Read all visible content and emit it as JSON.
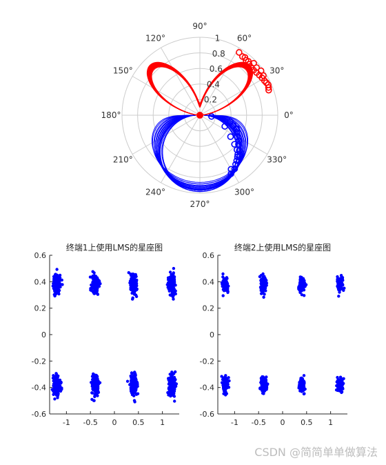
{
  "chart_data": [
    {
      "type": "polar",
      "angle_ticks_deg": [
        0,
        30,
        60,
        90,
        120,
        150,
        180,
        210,
        240,
        270,
        300,
        330
      ],
      "angle_tick_labels": [
        "0°",
        "30°",
        "60°",
        "90°",
        "120°",
        "150°",
        "180°",
        "210°",
        "240°",
        "270°",
        "300°",
        "330°"
      ],
      "r_ticks": [
        0.2,
        0.4,
        0.6,
        0.8,
        1
      ],
      "r_tick_labels": [
        "0.2",
        "0.4",
        "0.6",
        "0.8",
        "1"
      ],
      "rlim": [
        0,
        1
      ],
      "grid": true,
      "colors": {
        "upper": "#ff0000",
        "lower": "#0000ff",
        "grid": "#cccccc"
      },
      "series": [
        {
          "color": "#ff0000",
          "curves": [
            [
              0.9,
              0.8,
              0.3,
              0.1,
              0.0
            ],
            [
              0.88,
              0.82,
              0.35,
              0.2,
              0.05
            ],
            [
              0.92,
              0.78,
              0.25,
              0.0,
              0.1
            ],
            [
              0.86,
              0.84,
              0.4,
              0.3,
              0.0
            ],
            [
              0.94,
              0.76,
              0.2,
              0.05,
              0.08
            ],
            [
              0.84,
              0.86,
              0.45,
              0.35,
              0.02
            ],
            [
              0.96,
              0.74,
              0.15,
              0.15,
              0.12
            ],
            [
              0.82,
              0.88,
              0.5,
              0.4,
              0.04
            ],
            [
              0.98,
              0.72,
              0.1,
              0.25,
              0.06
            ],
            [
              0.8,
              0.9,
              0.55,
              0.45,
              0.0
            ],
            [
              0.91,
              0.81,
              0.28,
              0.12,
              0.09
            ],
            [
              0.87,
              0.83,
              0.38,
              0.22,
              0.03
            ],
            [
              0.93,
              0.79,
              0.22,
              0.08,
              0.11
            ],
            [
              0.85,
              0.85,
              0.42,
              0.28,
              0.01
            ],
            [
              0.95,
              0.77,
              0.18,
              0.18,
              0.07
            ],
            [
              0.83,
              0.87,
              0.48,
              0.38,
              0.05
            ],
            [
              0.97,
              0.75,
              0.12,
              0.02,
              0.1
            ],
            [
              0.81,
              0.89,
              0.52,
              0.42,
              0.02
            ],
            [
              0.89,
              0.8,
              0.32,
              0.15,
              0.06
            ],
            [
              0.9,
              0.82,
              0.3,
              0.25,
              0.04
            ]
          ],
          "marker_points": [
            [
              0.95,
              58
            ],
            [
              0.93,
              54
            ],
            [
              0.92,
              50
            ],
            [
              0.91,
              46
            ],
            [
              0.9,
              43
            ],
            [
              0.9,
              40
            ],
            [
              0.91,
              37
            ],
            [
              0.92,
              34
            ],
            [
              0.93,
              31
            ],
            [
              0.94,
              28
            ],
            [
              0.95,
              26
            ],
            [
              0.96,
              24
            ],
            [
              0.95,
              22
            ],
            [
              0.94,
              20
            ],
            [
              0.96,
              32
            ],
            [
              0.97,
              36
            ],
            [
              0.96,
              44
            ],
            [
              0.94,
              52
            ],
            [
              0.93,
              48
            ],
            [
              0.95,
              40
            ]
          ]
        },
        {
          "color": "#0000ff",
          "curves": [
            [
              0.5,
              0.8,
              0.4,
              0.2,
              0.0
            ],
            [
              0.6,
              0.7,
              0.3,
              0.1,
              0.1
            ],
            [
              0.4,
              0.9,
              0.5,
              0.3,
              0.05
            ],
            [
              0.7,
              0.6,
              0.2,
              0.0,
              0.15
            ],
            [
              0.3,
              1.0,
              0.6,
              0.4,
              0.0
            ],
            [
              0.8,
              0.5,
              0.1,
              0.2,
              0.08
            ],
            [
              0.2,
              0.95,
              0.7,
              0.5,
              0.03
            ],
            [
              0.9,
              0.4,
              0.0,
              0.3,
              0.12
            ],
            [
              0.55,
              0.85,
              0.45,
              0.25,
              0.02
            ],
            [
              0.65,
              0.75,
              0.35,
              0.15,
              0.06
            ],
            [
              0.45,
              0.88,
              0.55,
              0.35,
              0.09
            ],
            [
              0.75,
              0.65,
              0.25,
              0.05,
              0.11
            ],
            [
              0.35,
              0.97,
              0.65,
              0.45,
              0.04
            ],
            [
              0.85,
              0.55,
              0.15,
              0.25,
              0.07
            ],
            [
              0.25,
              0.92,
              0.75,
              0.55,
              0.01
            ],
            [
              0.95,
              0.45,
              0.05,
              0.35,
              0.13
            ],
            [
              0.52,
              0.82,
              0.42,
              0.22,
              0.06
            ],
            [
              0.62,
              0.72,
              0.32,
              0.12,
              0.08
            ],
            [
              0.42,
              0.87,
              0.52,
              0.32,
              0.04
            ],
            [
              0.72,
              0.62,
              0.22,
              0.08,
              0.1
            ]
          ],
          "marker_points": [
            [
              0.15,
              354
            ],
            [
              0.4,
              348
            ],
            [
              0.45,
              343
            ],
            [
              0.5,
              340
            ],
            [
              0.52,
              335
            ],
            [
              0.55,
              330
            ],
            [
              0.6,
              327
            ],
            [
              0.62,
              323
            ],
            [
              0.58,
              320
            ],
            [
              0.65,
              317
            ],
            [
              0.7,
              314
            ],
            [
              0.72,
              312
            ],
            [
              0.75,
              309
            ],
            [
              0.78,
              306
            ],
            [
              0.82,
              303
            ],
            [
              0.8,
              300
            ],
            [
              0.85,
              298
            ],
            [
              0.48,
              325
            ],
            [
              0.68,
              318
            ],
            [
              0.35,
              336
            ]
          ]
        }
      ]
    },
    {
      "type": "scatter",
      "title": "终端1上使用LMS的星座图",
      "xlim": [
        -1.35,
        1.35
      ],
      "ylim": [
        -0.6,
        0.6
      ],
      "xticks": [
        -1,
        -0.5,
        0,
        0.5,
        1
      ],
      "xtick_labels": [
        "-1",
        "-0.5",
        "0",
        "0.5",
        "1"
      ],
      "yticks": [
        -0.6,
        -0.4,
        -0.2,
        0,
        0.2,
        0.4,
        0.6
      ],
      "ytick_labels": [
        "-0.6",
        "-0.4",
        "-0.2",
        "0",
        "0.2",
        "0.4",
        "0.6"
      ],
      "color": "#0000ff",
      "cluster_centers_x": [
        -1.2,
        -0.4,
        0.4,
        1.2
      ],
      "cluster_centers_y": [
        -0.38,
        0.38
      ],
      "cluster_spread_x": 0.06,
      "cluster_spread_y": 0.07,
      "points_per_cluster": 150
    },
    {
      "type": "scatter",
      "title": "终端2上使用LMS的星座图",
      "xlim": [
        -1.35,
        1.35
      ],
      "ylim": [
        -0.6,
        0.6
      ],
      "xticks": [
        -1,
        -0.5,
        0,
        0.5,
        1
      ],
      "xtick_labels": [
        "-1",
        "-0.5",
        "0",
        "0.5",
        "1"
      ],
      "yticks": [
        -0.6,
        -0.4,
        -0.2,
        0,
        0.2,
        0.4,
        0.6
      ],
      "ytick_labels": [
        "-0.6",
        "-0.4",
        "-0.2",
        "0",
        "0.2",
        "0.4",
        "0.6"
      ],
      "color": "#0000ff",
      "cluster_centers_x": [
        -1.2,
        -0.4,
        0.4,
        1.2
      ],
      "cluster_centers_y": [
        -0.38,
        0.38
      ],
      "cluster_spread_x": 0.05,
      "cluster_spread_y": 0.05,
      "points_per_cluster": 130
    }
  ],
  "watermark": "CSDN @简简单单做算法"
}
